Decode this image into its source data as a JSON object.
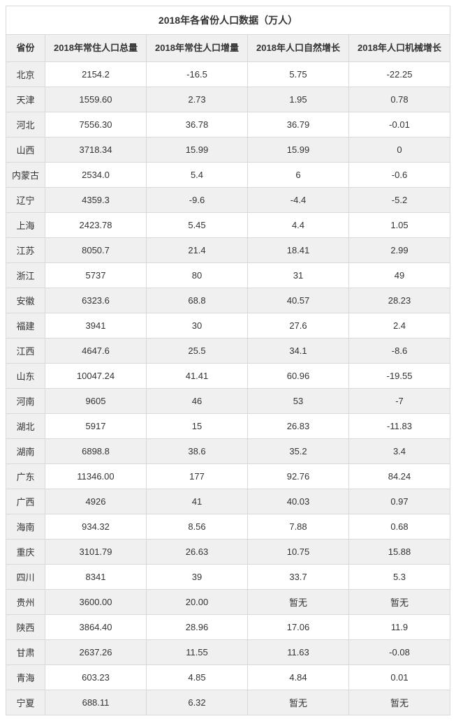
{
  "table": {
    "title": "2018年各省份人口数据（万人）",
    "columns": [
      "省份",
      "2018年常住人口总量",
      "2018年常住人口增量",
      "2018年人口自然增长",
      "2018年人口机械增长"
    ],
    "rows": [
      [
        "北京",
        "2154.2",
        "-16.5",
        "5.75",
        "-22.25"
      ],
      [
        "天津",
        "1559.60",
        "2.73",
        "1.95",
        "0.78"
      ],
      [
        "河北",
        "7556.30",
        "36.78",
        "36.79",
        "-0.01"
      ],
      [
        "山西",
        "3718.34",
        "15.99",
        "15.99",
        "0"
      ],
      [
        "内蒙古",
        "2534.0",
        "5.4",
        "6",
        "-0.6"
      ],
      [
        "辽宁",
        "4359.3",
        "-9.6",
        "-4.4",
        "-5.2"
      ],
      [
        "上海",
        "2423.78",
        "5.45",
        "4.4",
        "1.05"
      ],
      [
        "江苏",
        "8050.7",
        "21.4",
        "18.41",
        "2.99"
      ],
      [
        "浙江",
        "5737",
        "80",
        "31",
        "49"
      ],
      [
        "安徽",
        "6323.6",
        "68.8",
        "40.57",
        "28.23"
      ],
      [
        "福建",
        "3941",
        "30",
        "27.6",
        "2.4"
      ],
      [
        "江西",
        "4647.6",
        "25.5",
        "34.1",
        "-8.6"
      ],
      [
        "山东",
        "10047.24",
        "41.41",
        "60.96",
        "-19.55"
      ],
      [
        "河南",
        "9605",
        "46",
        "53",
        "-7"
      ],
      [
        "湖北",
        "5917",
        "15",
        "26.83",
        "-11.83"
      ],
      [
        "湖南",
        "6898.8",
        "38.6",
        "35.2",
        "3.4"
      ],
      [
        "广东",
        "11346.00",
        "177",
        "92.76",
        "84.24"
      ],
      [
        "广西",
        "4926",
        "41",
        "40.03",
        "0.97"
      ],
      [
        "海南",
        "934.32",
        "8.56",
        "7.88",
        "0.68"
      ],
      [
        "重庆",
        "3101.79",
        "26.63",
        "10.75",
        "15.88"
      ],
      [
        "四川",
        "8341",
        "39",
        "33.7",
        "5.3"
      ],
      [
        "贵州",
        "3600.00",
        "20.00",
        "暂无",
        "暂无"
      ],
      [
        "陕西",
        "3864.40",
        "28.96",
        "17.06",
        "11.9"
      ],
      [
        "甘肃",
        "2637.26",
        "11.55",
        "11.63",
        "-0.08"
      ],
      [
        "青海",
        "603.23",
        "4.85",
        "4.84",
        "0.01"
      ],
      [
        "宁夏",
        "688.11",
        "6.32",
        "暂无",
        "暂无"
      ]
    ],
    "styling": {
      "header_bg": "#f0f0f0",
      "row_alt_bg": "#f0f0f0",
      "row_bg": "#ffffff",
      "border_color": "#d9d9d9",
      "text_color": "#333333",
      "title_fontsize": 14,
      "cell_fontsize": 13
    }
  }
}
